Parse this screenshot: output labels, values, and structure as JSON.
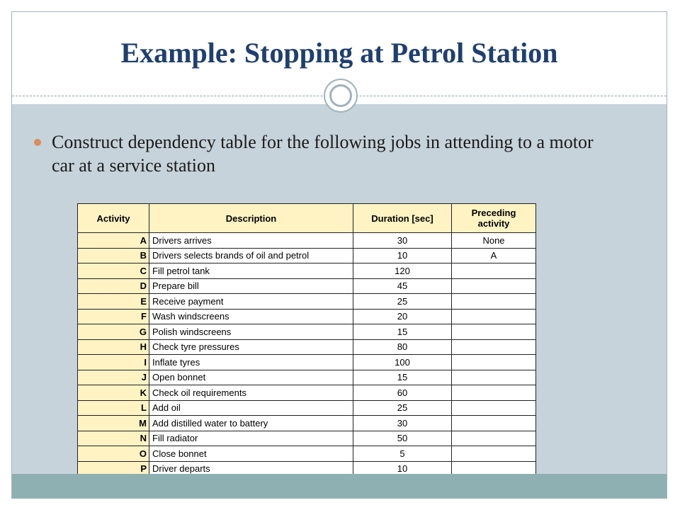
{
  "slide": {
    "title": "Example: Stopping at Petrol Station",
    "bullet": "Construct dependency table for the following jobs in attending to a motor car at a service station"
  },
  "table": {
    "headers": {
      "activity": "Activity",
      "description": "Description",
      "duration": "Duration [sec]",
      "preceding": "Preceding activity"
    },
    "rows": [
      {
        "activity": "A",
        "description": "Drivers arrives",
        "duration": "30",
        "preceding": "None"
      },
      {
        "activity": "B",
        "description": "Drivers selects brands of oil and petrol",
        "duration": "10",
        "preceding": "A"
      },
      {
        "activity": "C",
        "description": "Fill petrol tank",
        "duration": "120",
        "preceding": ""
      },
      {
        "activity": "D",
        "description": "Prepare bill",
        "duration": "45",
        "preceding": ""
      },
      {
        "activity": "E",
        "description": "Receive payment",
        "duration": "25",
        "preceding": ""
      },
      {
        "activity": "F",
        "description": "Wash windscreens",
        "duration": "20",
        "preceding": ""
      },
      {
        "activity": "G",
        "description": "Polish windscreens",
        "duration": "15",
        "preceding": ""
      },
      {
        "activity": "H",
        "description": "Check tyre pressures",
        "duration": "80",
        "preceding": ""
      },
      {
        "activity": "I",
        "description": "Inflate tyres",
        "duration": "100",
        "preceding": ""
      },
      {
        "activity": "J",
        "description": "Open bonnet",
        "duration": "15",
        "preceding": ""
      },
      {
        "activity": "K",
        "description": "Check oil requirements",
        "duration": "60",
        "preceding": ""
      },
      {
        "activity": "L",
        "description": "Add oil",
        "duration": "25",
        "preceding": ""
      },
      {
        "activity": "M",
        "description": "Add distilled water to battery",
        "duration": "30",
        "preceding": ""
      },
      {
        "activity": "N",
        "description": "Fill radiator",
        "duration": "50",
        "preceding": ""
      },
      {
        "activity": "O",
        "description": "Close bonnet",
        "duration": "5",
        "preceding": ""
      },
      {
        "activity": "P",
        "description": "Driver departs",
        "duration": "10",
        "preceding": ""
      }
    ]
  },
  "colors": {
    "title": "#1f3f6f",
    "content_bg": "#c7d3da",
    "bottom_band": "#8fb0b3",
    "bullet": "#d98c5f",
    "header_fill": "#fff3c4"
  }
}
